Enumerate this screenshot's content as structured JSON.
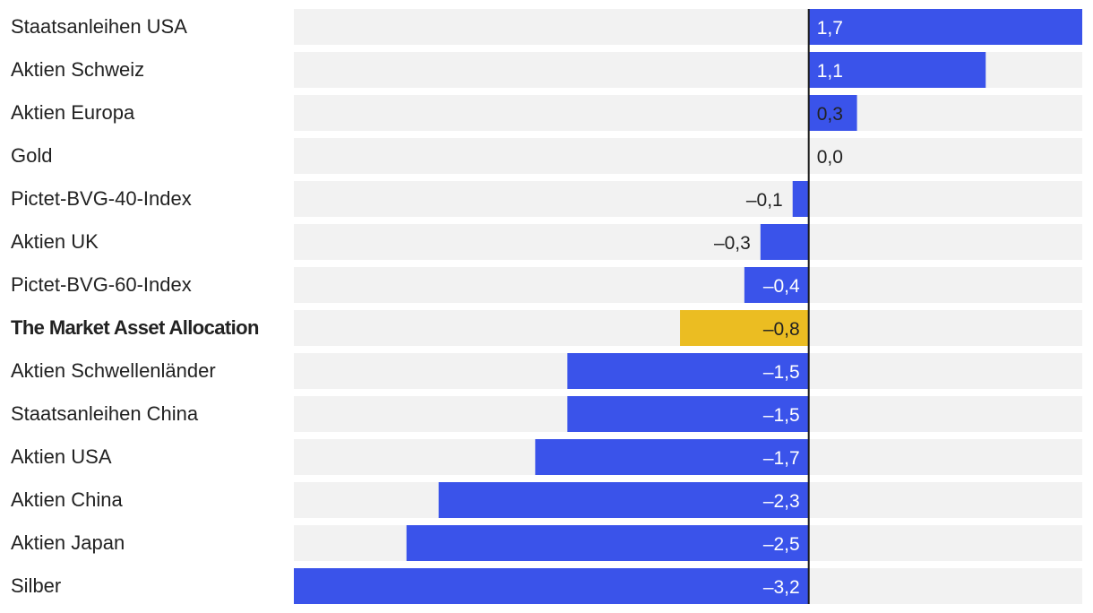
{
  "chart_data": {
    "type": "bar",
    "orientation": "horizontal",
    "title": "",
    "xlabel": "",
    "ylabel": "",
    "xlim": [
      -3.2,
      1.7
    ],
    "grid": false,
    "categories": [
      "Staatsanleihen USA",
      "Aktien Schweiz",
      "Aktien Europa",
      "Gold",
      "Pictet-BVG-40-Index",
      "Aktien UK",
      "Pictet-BVG-60-Index",
      "The Market Asset Allocation",
      "Aktien Schwellenländer",
      "Staatsanleihen China",
      "Aktien USA",
      "Aktien China",
      "Aktien Japan",
      "Silber"
    ],
    "values": [
      1.7,
      1.1,
      0.3,
      0.0,
      -0.1,
      -0.3,
      -0.4,
      -0.8,
      -1.5,
      -1.5,
      -1.7,
      -2.3,
      -2.5,
      -3.2
    ],
    "value_labels": [
      "1,7",
      "1,1",
      "0,3",
      "0,0",
      "–0,1",
      "–0,3",
      "–0,4",
      "–0,8",
      "–1,5",
      "–1,5",
      "–1,7",
      "–2,3",
      "–2,5",
      "–3,2"
    ],
    "highlight_category": "The Market Asset Allocation",
    "colors": {
      "bar": "#3a53ea",
      "highlight": "#ebbd22",
      "track": "#f2f2f2",
      "axis": "#1a1a1a",
      "label_dark": "#222222",
      "label_light": "#ffffff"
    }
  }
}
